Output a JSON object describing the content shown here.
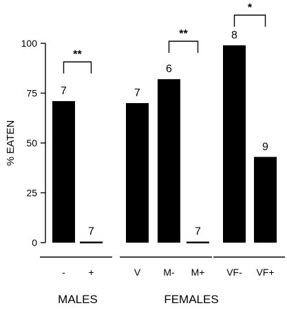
{
  "chart_data": {
    "type": "bar",
    "ylabel": "% EATEN",
    "ylim": [
      0,
      100
    ],
    "yticks": [
      0,
      25,
      50,
      75,
      100
    ],
    "grid": false,
    "groups": [
      {
        "name": "MALES",
        "categories": [
          "-",
          "+"
        ],
        "values": [
          71,
          0
        ],
        "counts": [
          "7",
          "7"
        ]
      },
      {
        "name": "FEMALES",
        "categories": [
          "V",
          "M-",
          "M+",
          "VF-",
          "VF+"
        ],
        "values": [
          70,
          82,
          0,
          99,
          43
        ],
        "counts": [
          "7",
          "6",
          "7",
          "8",
          "9"
        ]
      }
    ],
    "significance": [
      {
        "group": 0,
        "from": 0,
        "to": 1,
        "label": "**"
      },
      {
        "group": 1,
        "from": 1,
        "to": 2,
        "label": "**"
      },
      {
        "group": 1,
        "from": 3,
        "to": 4,
        "label": "*"
      }
    ]
  }
}
